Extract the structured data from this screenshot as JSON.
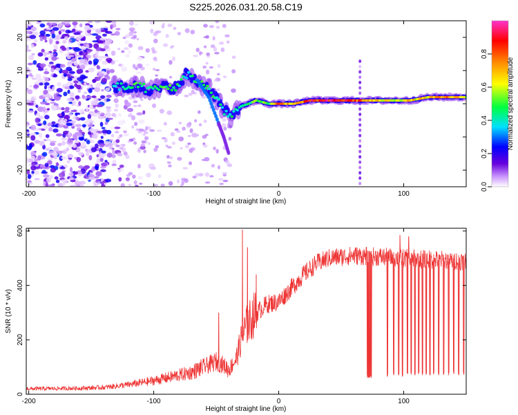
{
  "title": "S225.2026.031.20.58.C19",
  "chart_data": [
    {
      "type": "heatmap",
      "title": "S225.2026.031.20.58.C19",
      "xlabel": "Height of straight line (km)",
      "ylabel": "Frequency (Hz)",
      "xlim": [
        -202,
        150
      ],
      "ylim": [
        -25,
        25
      ],
      "x_ticks": [
        -200,
        -100,
        0,
        100
      ],
      "x_tick_labels": [
        "-200",
        "-100",
        "0",
        "100"
      ],
      "y_ticks": [
        -20,
        -10,
        0,
        10,
        20
      ],
      "y_tick_labels": [
        "-20",
        "-10",
        "0",
        "10",
        "20"
      ],
      "colorbar": {
        "label": "Normalized spectral amplitude",
        "range": [
          0,
          1
        ],
        "ticks": [
          0.0,
          0.2,
          0.4,
          0.6,
          0.8
        ],
        "tick_labels": [
          "0.0",
          "0.2",
          "0.4",
          "0.6",
          "0.8"
        ],
        "colors": [
          "#ffffff",
          "#cc99ff",
          "#6600dd",
          "#0000ff",
          "#00e0ff",
          "#00ff40",
          "#ffff00",
          "#ff8000",
          "#ff0000",
          "#ff33cc"
        ]
      },
      "ridge": [
        {
          "x": -132,
          "f": 5,
          "a": 0.45
        },
        {
          "x": -120,
          "f": 5,
          "a": 0.5
        },
        {
          "x": -110,
          "f": 5,
          "a": 0.55
        },
        {
          "x": -100,
          "f": 4,
          "a": 0.5
        },
        {
          "x": -90,
          "f": 5,
          "a": 0.55
        },
        {
          "x": -80,
          "f": 5,
          "a": 0.5
        },
        {
          "x": -74,
          "f": 9,
          "a": 0.45
        },
        {
          "x": -66,
          "f": 7,
          "a": 0.5
        },
        {
          "x": -58,
          "f": 5,
          "a": 0.55
        },
        {
          "x": -50,
          "f": 2,
          "a": 0.5
        },
        {
          "x": -44,
          "f": -2,
          "a": 0.45
        },
        {
          "x": -38,
          "f": -4,
          "a": 0.5
        },
        {
          "x": -32,
          "f": -1,
          "a": 0.45
        },
        {
          "x": -24,
          "f": 0,
          "a": 0.5
        },
        {
          "x": -18,
          "f": 1,
          "a": 0.65
        },
        {
          "x": -8,
          "f": 0,
          "a": 0.55
        },
        {
          "x": 0,
          "f": 0,
          "a": 0.9
        },
        {
          "x": 12,
          "f": 0,
          "a": 0.75
        },
        {
          "x": 25,
          "f": 1,
          "a": 0.95
        },
        {
          "x": 45,
          "f": 1,
          "a": 1.0
        },
        {
          "x": 62,
          "f": 1,
          "a": 0.95
        },
        {
          "x": 75,
          "f": 1,
          "a": 0.75
        },
        {
          "x": 90,
          "f": 1,
          "a": 0.7
        },
        {
          "x": 105,
          "f": 1,
          "a": 0.75
        },
        {
          "x": 120,
          "f": 2,
          "a": 0.75
        },
        {
          "x": 135,
          "f": 2,
          "a": 0.85
        },
        {
          "x": 150,
          "f": 2,
          "a": 0.7
        }
      ],
      "branch": [
        {
          "x": -65,
          "f": 7
        },
        {
          "x": -56,
          "f": 2
        },
        {
          "x": -48,
          "f": -6
        },
        {
          "x": -44,
          "f": -10
        },
        {
          "x": -40,
          "f": -15
        }
      ],
      "noise_region": {
        "x_from": -202,
        "x_to": -135,
        "level": 0.25
      }
    },
    {
      "type": "line",
      "xlabel": "Height of straight line (km)",
      "ylabel": "SNR (10 * v/v)",
      "xlim": [
        -202,
        150
      ],
      "ylim": [
        0,
        610
      ],
      "x_ticks": [
        -200,
        -100,
        0,
        100
      ],
      "x_tick_labels": [
        "-200",
        "-100",
        "0",
        "100"
      ],
      "y_ticks": [
        0,
        200,
        400,
        600
      ],
      "y_tick_labels": [
        "0",
        "200",
        "400",
        "600"
      ],
      "series": [
        {
          "name": "SNR",
          "color": "#ee3333",
          "envelope": {
            "x": [
              -202,
              -160,
              -140,
              -120,
              -100,
              -80,
              -70,
              -60,
              -50,
              -45,
              -40,
              -34,
              -30,
              -26,
              -20,
              -10,
              0,
              10,
              20,
              30,
              40,
              60,
              80,
              100,
              120,
              150
            ],
            "y": [
              20,
              22,
              25,
              35,
              50,
              70,
              80,
              100,
              120,
              110,
              90,
              130,
              200,
              250,
              290,
              330,
              340,
              390,
              440,
              480,
              500,
              510,
              505,
              500,
              495,
              490
            ]
          },
          "spikes": [
            {
              "x": -48,
              "y": 300
            },
            {
              "x": -29,
              "y": 605
            },
            {
              "x": -25,
              "y": 540
            },
            {
              "x": -18,
              "y": 440
            },
            {
              "x": 70,
              "y": 540
            },
            {
              "x": 97,
              "y": 585
            },
            {
              "x": 104,
              "y": 580
            }
          ],
          "dropouts": [
            {
              "x": 71,
              "y": 60
            },
            {
              "x": 72,
              "y": 60
            },
            {
              "x": 73,
              "y": 62
            },
            {
              "x": 74,
              "y": 60
            },
            {
              "x": 87,
              "y": 65
            },
            {
              "x": 92,
              "y": 70
            },
            {
              "x": 96,
              "y": 70
            },
            {
              "x": 99,
              "y": 65
            },
            {
              "x": 103,
              "y": 75
            },
            {
              "x": 106,
              "y": 72
            },
            {
              "x": 109,
              "y": 70
            },
            {
              "x": 112,
              "y": 75
            },
            {
              "x": 115,
              "y": 70
            },
            {
              "x": 118,
              "y": 72
            },
            {
              "x": 121,
              "y": 70
            },
            {
              "x": 124,
              "y": 75
            },
            {
              "x": 128,
              "y": 70
            },
            {
              "x": 132,
              "y": 72
            },
            {
              "x": 136,
              "y": 70
            },
            {
              "x": 140,
              "y": 75
            },
            {
              "x": 144,
              "y": 70
            },
            {
              "x": 148,
              "y": 72
            }
          ]
        }
      ]
    }
  ]
}
